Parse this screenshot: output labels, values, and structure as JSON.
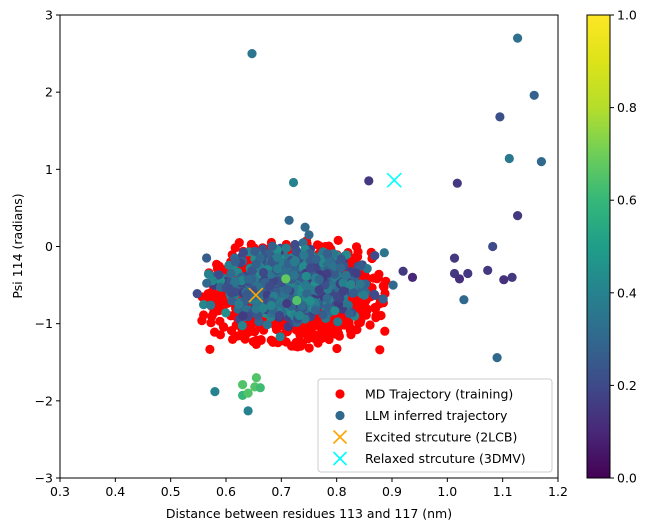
{
  "chart_data": {
    "type": "scatter",
    "xlabel": "Distance between residues 113 and 117 (nm)",
    "ylabel": "Psi 114 (radians)",
    "xlim": [
      0.3,
      1.2
    ],
    "ylim": [
      -3,
      3
    ],
    "x_ticks": [
      "0.3",
      "0.4",
      "0.5",
      "0.6",
      "0.7",
      "0.8",
      "0.9",
      "1.0",
      "1.1",
      "1.2"
    ],
    "y_ticks": [
      "−3",
      "−2",
      "−1",
      "0",
      "1",
      "2",
      "3"
    ],
    "grid": false,
    "legend_position": "lower-right",
    "colorbar": {
      "colormap": "viridis",
      "range": [
        0,
        1
      ],
      "ticks": [
        "0.0",
        "0.2",
        "0.4",
        "0.6",
        "0.8",
        "1.0"
      ]
    },
    "series": [
      {
        "name": "MD Trajectory (training)",
        "marker": "circle",
        "color": "#ff0000",
        "cluster": {
          "description": "dense cloud",
          "x_range": [
            0.555,
            0.895
          ],
          "y_range": [
            -1.35,
            0.08
          ]
        }
      },
      {
        "name": "LLM inferred trajectory",
        "marker": "circle",
        "color_mapped": true,
        "legend_color": "#31688e",
        "points": [
          {
            "x": 0.647,
            "y": 2.5,
            "c": 0.35
          },
          {
            "x": 1.127,
            "y": 2.7,
            "c": 0.33
          },
          {
            "x": 1.157,
            "y": 1.96,
            "c": 0.28
          },
          {
            "x": 1.095,
            "y": 1.68,
            "c": 0.22
          },
          {
            "x": 1.112,
            "y": 1.14,
            "c": 0.36
          },
          {
            "x": 1.17,
            "y": 1.1,
            "c": 0.3
          },
          {
            "x": 1.018,
            "y": 0.82,
            "c": 0.15
          },
          {
            "x": 0.722,
            "y": 0.83,
            "c": 0.4
          },
          {
            "x": 0.858,
            "y": 0.85,
            "c": 0.15
          },
          {
            "x": 1.127,
            "y": 0.4,
            "c": 0.15
          },
          {
            "x": 1.082,
            "y": 0.0,
            "c": 0.2
          },
          {
            "x": 1.013,
            "y": -0.15,
            "c": 0.15
          },
          {
            "x": 1.013,
            "y": -0.35,
            "c": 0.15
          },
          {
            "x": 1.022,
            "y": -0.42,
            "c": 0.12
          },
          {
            "x": 1.037,
            "y": -0.35,
            "c": 0.15
          },
          {
            "x": 1.073,
            "y": -0.31,
            "c": 0.15
          },
          {
            "x": 1.102,
            "y": -0.43,
            "c": 0.13
          },
          {
            "x": 1.117,
            "y": -0.4,
            "c": 0.15
          },
          {
            "x": 1.03,
            "y": -0.69,
            "c": 0.3
          },
          {
            "x": 1.09,
            "y": -1.44,
            "c": 0.3
          },
          {
            "x": 0.937,
            "y": -0.4,
            "c": 0.1
          },
          {
            "x": 0.92,
            "y": -0.32,
            "c": 0.15
          },
          {
            "x": 0.902,
            "y": -0.5,
            "c": 0.3
          },
          {
            "x": 0.886,
            "y": -0.08,
            "c": 0.35
          },
          {
            "x": 0.714,
            "y": 0.34,
            "c": 0.3
          },
          {
            "x": 0.743,
            "y": 0.25,
            "c": 0.3
          },
          {
            "x": 0.75,
            "y": 0.15,
            "c": 0.3
          },
          {
            "x": 0.548,
            "y": -0.61,
            "c": 0.2
          },
          {
            "x": 0.58,
            "y": -1.88,
            "c": 0.4
          },
          {
            "x": 0.63,
            "y": -1.93,
            "c": 0.6
          },
          {
            "x": 0.64,
            "y": -1.9,
            "c": 0.65
          },
          {
            "x": 0.63,
            "y": -1.79,
            "c": 0.65
          },
          {
            "x": 0.655,
            "y": -1.7,
            "c": 0.65
          },
          {
            "x": 0.652,
            "y": -1.82,
            "c": 0.65
          },
          {
            "x": 0.662,
            "y": -1.83,
            "c": 0.62
          },
          {
            "x": 0.64,
            "y": -2.13,
            "c": 0.4
          },
          {
            "x": 0.708,
            "y": -0.42,
            "c": 0.68
          },
          {
            "x": 0.728,
            "y": -0.7,
            "c": 0.65
          },
          {
            "x": 0.698,
            "y": -1.17,
            "c": 0.4
          },
          {
            "x": 0.868,
            "y": -0.62,
            "c": 0.2
          }
        ],
        "cluster": {
          "description": "dense cloud over the red cloud",
          "x_range": [
            0.555,
            0.885
          ],
          "y_range": [
            -1.05,
            0.05
          ],
          "c_range": [
            0.15,
            0.45
          ]
        }
      }
    ],
    "reference_markers": [
      {
        "name": "Excited strcuture (2LCB)",
        "marker": "x",
        "color": "#ffa500",
        "x": 0.654,
        "y": -0.63
      },
      {
        "name": "Relaxed strcuture (3DMV)",
        "marker": "x",
        "color": "#00ffff",
        "x": 0.904,
        "y": 0.86
      }
    ]
  }
}
